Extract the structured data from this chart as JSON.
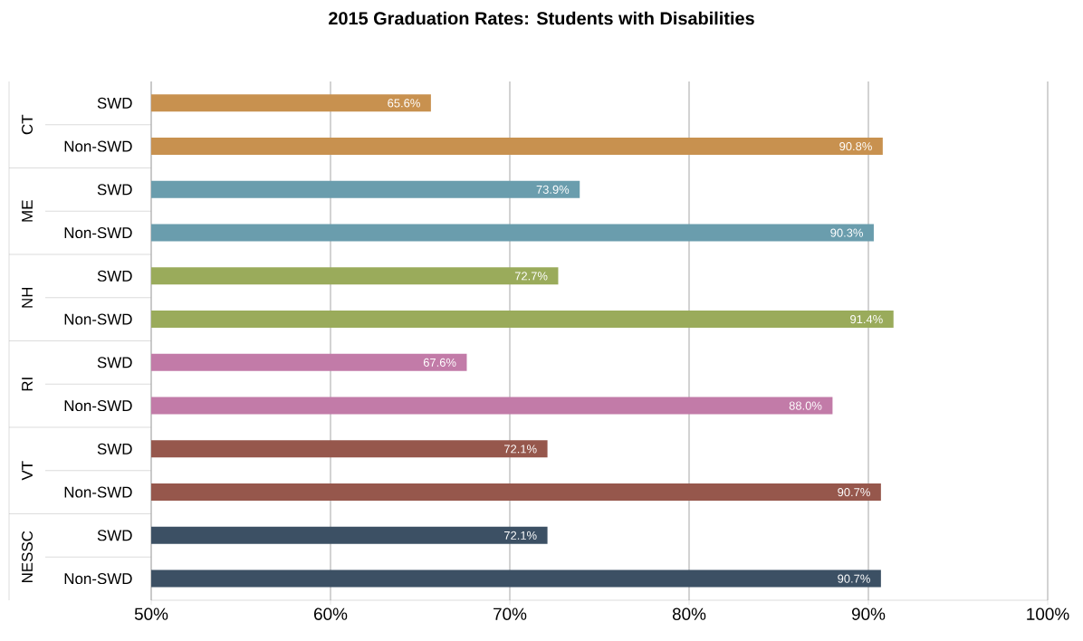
{
  "chart_data": {
    "type": "bar",
    "orientation": "horizontal",
    "title": "2015 Graduation Rates: Students with Disabilities",
    "categories": [
      "SWD",
      "Non-SWD",
      "SWD",
      "Non-SWD",
      "SWD",
      "Non-SWD",
      "SWD",
      "Non-SWD",
      "SWD",
      "Non-SWD",
      "SWD",
      "Non-SWD"
    ],
    "values": [
      65.6,
      90.8,
      73.9,
      90.3,
      72.7,
      91.4,
      67.6,
      88.0,
      72.1,
      90.7,
      72.1,
      90.7
    ],
    "value_labels": [
      "65.6%",
      "90.8%",
      "73.9%",
      "90.3%",
      "72.7%",
      "91.4%",
      "67.6%",
      "88.0%",
      "72.1%",
      "90.7%",
      "72.1%",
      "90.7%"
    ],
    "colors": [
      "#c8914f",
      "#c8914f",
      "#6a9dad",
      "#6a9dad",
      "#9aab5b",
      "#9aab5b",
      "#c27ba8",
      "#c27ba8",
      "#96574c",
      "#96574c",
      "#3c5064",
      "#3c5064"
    ],
    "annotations": [
      "CT",
      "ME",
      "NH",
      "RI",
      "VT",
      "NESSC"
    ],
    "xlim": [
      50,
      100
    ],
    "xticks": [
      {
        "value": 50,
        "label": "50%"
      },
      {
        "value": 60,
        "label": "60%"
      },
      {
        "value": 70,
        "label": "70%"
      },
      {
        "value": 80,
        "label": "80%"
      },
      {
        "value": 90,
        "label": "90%"
      },
      {
        "value": 100,
        "label": "100%"
      }
    ],
    "grid": "x"
  }
}
